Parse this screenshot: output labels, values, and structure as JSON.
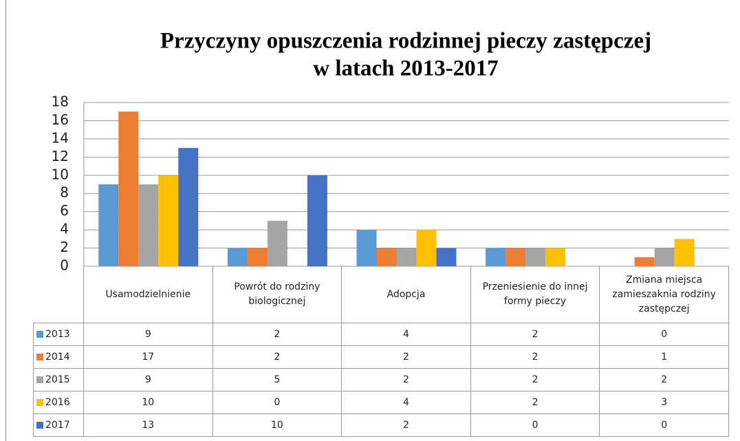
{
  "chart_data": {
    "type": "bar",
    "title": [
      "Przyczyny opuszczenia rodzinnej pieczy zastępczej",
      "w latach 2013-2017"
    ],
    "categories": [
      "Usamodzielnienie",
      "Powrót do rodziny biologicznej",
      "Adopcja",
      "Przeniesienie do innej formy pieczy",
      "Zmiana miejsca zamieszaknia rodziny zastępczej"
    ],
    "series": [
      {
        "name": "2013",
        "color": "#5b9bd5",
        "values": [
          9,
          2,
          4,
          2,
          0
        ]
      },
      {
        "name": "2014",
        "color": "#ed7d31",
        "values": [
          17,
          2,
          2,
          2,
          1
        ]
      },
      {
        "name": "2015",
        "color": "#a5a5a5",
        "values": [
          9,
          5,
          2,
          2,
          2
        ]
      },
      {
        "name": "2016",
        "color": "#ffc000",
        "values": [
          10,
          0,
          4,
          2,
          3
        ]
      },
      {
        "name": "2017",
        "color": "#4472c4",
        "values": [
          13,
          10,
          2,
          0,
          0
        ]
      }
    ],
    "ylim": [
      0,
      18
    ],
    "yticks": [
      0,
      2,
      4,
      6,
      8,
      10,
      12,
      14,
      16,
      18
    ],
    "grid": true
  }
}
